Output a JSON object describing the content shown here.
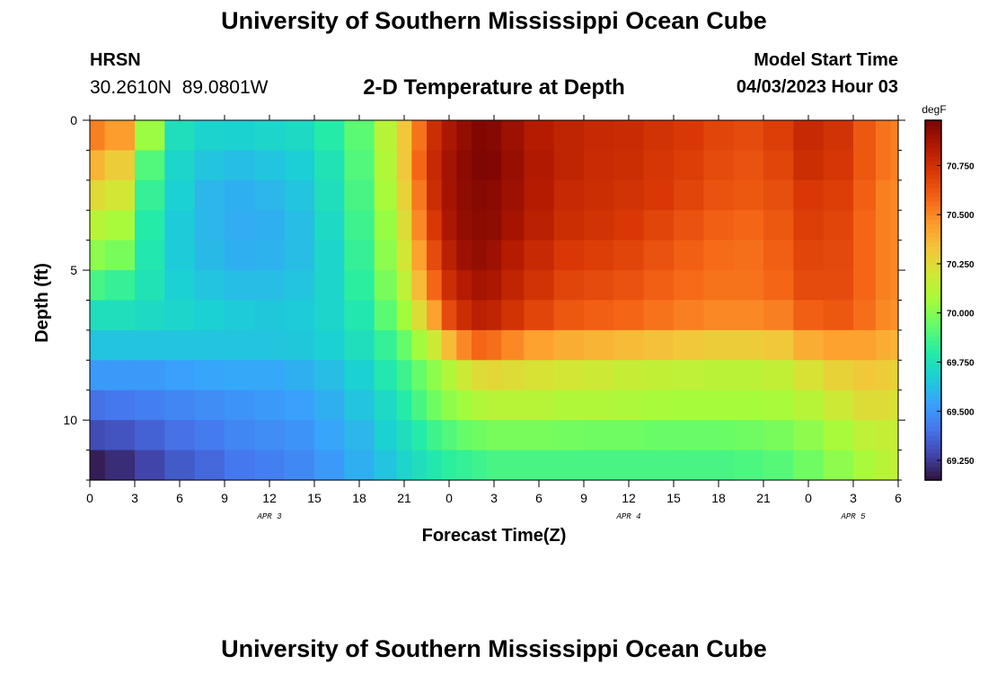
{
  "header": {
    "title": "University of Southern Mississippi Ocean Cube",
    "station": "HRSN",
    "coords": "30.2610N  89.0801W",
    "subtitle": "2-D Temperature at Depth",
    "model_start_label": "Model Start Time",
    "model_start_value": "04/03/2023 Hour 03"
  },
  "footer": {
    "title": "University of Southern Mississippi Ocean Cube"
  },
  "chart_data": {
    "type": "heatmap",
    "title": "2-D Temperature at Depth",
    "xlabel": "Forecast Time(Z)",
    "ylabel": "Depth (ft)",
    "x_ticks": [
      "0",
      "3",
      "6",
      "9",
      "12",
      "15",
      "18",
      "21",
      "0",
      "3",
      "6",
      "9",
      "12",
      "15",
      "18",
      "21",
      "0",
      "3",
      "6"
    ],
    "day_labels": [
      {
        "label": "APR 3",
        "at_hour": 12
      },
      {
        "label": "APR 4",
        "at_hour": 36
      },
      {
        "label": "APR 5",
        "at_hour": 51
      }
    ],
    "y_ticks": [
      "0",
      "5",
      "10"
    ],
    "xlim_hours": [
      0,
      54
    ],
    "ylim_ft": [
      0,
      12
    ],
    "colorbar": {
      "unit": "degF",
      "range": [
        69.15,
        70.98
      ],
      "tick_values": [
        69.25,
        69.5,
        69.75,
        70.0,
        70.25,
        70.5,
        70.75
      ],
      "tick_labels": [
        "69.250",
        "69.500",
        "69.750",
        "70.000",
        "70.250",
        "70.500",
        "70.750"
      ],
      "colormap": [
        "#30123b",
        "#4145ab",
        "#4675ed",
        "#39a2fc",
        "#1bcfd4",
        "#24eca6",
        "#61fc6c",
        "#a4fc3b",
        "#d1e834",
        "#f3c63a",
        "#fe9b2d",
        "#f36315",
        "#d93806",
        "#b11901",
        "#7a0403"
      ]
    },
    "depth_levels_ft": [
      0.5,
      1.5,
      2.5,
      3.5,
      4.5,
      5.5,
      6.5,
      7.5,
      8.5,
      9.5,
      10.5,
      11.5
    ],
    "time_hours": [
      0,
      2,
      4,
      6,
      8,
      10,
      12,
      14,
      16,
      18,
      20,
      21,
      22,
      23,
      24,
      25,
      26,
      27,
      28,
      30,
      32,
      34,
      36,
      38,
      40,
      42,
      44,
      46,
      48,
      50,
      52,
      53,
      54
    ],
    "values_degF": [
      [
        70.52,
        70.45,
        70.05,
        69.74,
        69.69,
        69.68,
        69.7,
        69.72,
        69.8,
        69.92,
        70.12,
        70.32,
        70.55,
        70.76,
        70.86,
        70.92,
        70.96,
        70.95,
        70.9,
        70.84,
        70.8,
        70.78,
        70.77,
        70.74,
        70.72,
        70.68,
        70.66,
        70.7,
        70.78,
        70.74,
        70.62,
        70.55,
        70.52
      ],
      [
        70.38,
        70.3,
        69.9,
        69.7,
        69.64,
        69.62,
        69.64,
        69.67,
        69.76,
        69.9,
        70.1,
        70.32,
        70.58,
        70.78,
        70.88,
        70.94,
        70.97,
        70.96,
        70.91,
        70.85,
        70.8,
        70.77,
        70.76,
        70.73,
        70.7,
        70.66,
        70.64,
        70.68,
        70.76,
        70.73,
        70.62,
        70.55,
        70.52
      ],
      [
        70.25,
        70.2,
        69.84,
        69.68,
        69.6,
        69.58,
        69.6,
        69.64,
        69.74,
        69.88,
        70.08,
        70.28,
        70.54,
        70.76,
        70.88,
        70.93,
        70.95,
        70.94,
        70.9,
        70.84,
        70.78,
        70.76,
        70.74,
        70.72,
        70.68,
        70.64,
        70.62,
        70.65,
        70.72,
        70.7,
        70.6,
        70.52,
        70.5
      ],
      [
        70.12,
        70.08,
        69.8,
        69.66,
        69.6,
        69.57,
        69.58,
        69.62,
        69.72,
        69.86,
        70.04,
        70.24,
        70.5,
        70.72,
        70.86,
        70.92,
        70.94,
        70.93,
        70.88,
        70.82,
        70.76,
        70.74,
        70.72,
        70.68,
        70.64,
        70.6,
        70.58,
        70.62,
        70.7,
        70.68,
        70.58,
        70.52,
        70.5
      ],
      [
        70.02,
        69.98,
        69.78,
        69.66,
        69.61,
        69.58,
        69.59,
        69.62,
        69.7,
        69.84,
        70.02,
        70.2,
        70.44,
        70.66,
        70.82,
        70.9,
        70.92,
        70.9,
        70.84,
        70.78,
        70.72,
        70.7,
        70.68,
        70.64,
        70.6,
        70.57,
        70.56,
        70.6,
        70.68,
        70.67,
        70.58,
        70.52,
        70.5
      ],
      [
        69.88,
        69.84,
        69.76,
        69.68,
        69.64,
        69.62,
        69.62,
        69.64,
        69.7,
        69.82,
        69.98,
        70.14,
        70.36,
        70.58,
        70.76,
        70.84,
        70.88,
        70.86,
        70.8,
        70.74,
        70.68,
        70.66,
        70.64,
        70.6,
        70.57,
        70.55,
        70.55,
        70.58,
        70.66,
        70.66,
        70.58,
        70.52,
        70.5
      ],
      [
        69.74,
        69.74,
        69.72,
        69.7,
        69.68,
        69.66,
        69.65,
        69.66,
        69.7,
        69.78,
        69.92,
        70.06,
        70.24,
        70.44,
        70.66,
        70.76,
        70.82,
        70.8,
        70.74,
        70.68,
        70.62,
        70.6,
        70.58,
        70.55,
        70.52,
        70.5,
        70.5,
        70.52,
        70.6,
        70.62,
        70.56,
        70.5,
        70.48
      ],
      [
        69.64,
        69.64,
        69.64,
        69.64,
        69.64,
        69.64,
        69.64,
        69.65,
        69.68,
        69.74,
        69.84,
        69.94,
        70.06,
        70.18,
        70.36,
        70.5,
        70.58,
        70.56,
        70.5,
        70.44,
        70.4,
        70.38,
        70.36,
        70.34,
        70.32,
        70.3,
        70.3,
        70.32,
        70.4,
        70.44,
        70.44,
        70.4,
        70.38
      ],
      [
        69.52,
        69.52,
        69.52,
        69.54,
        69.55,
        69.56,
        69.56,
        69.58,
        69.62,
        69.68,
        69.78,
        69.86,
        69.94,
        70.02,
        70.1,
        70.18,
        70.24,
        70.26,
        70.24,
        70.22,
        70.2,
        70.18,
        70.16,
        70.15,
        70.14,
        70.13,
        70.13,
        70.15,
        70.22,
        70.28,
        70.32,
        70.3,
        70.28
      ],
      [
        69.4,
        69.42,
        69.44,
        69.46,
        69.48,
        69.5,
        69.52,
        69.54,
        69.58,
        69.64,
        69.72,
        69.8,
        69.88,
        69.96,
        70.02,
        70.06,
        70.1,
        70.12,
        70.12,
        70.12,
        70.1,
        70.1,
        70.09,
        70.08,
        70.07,
        70.07,
        70.07,
        70.08,
        70.12,
        70.18,
        70.24,
        70.24,
        70.22
      ],
      [
        69.3,
        69.32,
        69.36,
        69.4,
        69.43,
        69.46,
        69.48,
        69.5,
        69.55,
        69.6,
        69.68,
        69.74,
        69.8,
        69.86,
        69.9,
        69.94,
        69.96,
        69.98,
        69.98,
        69.98,
        69.97,
        69.96,
        69.96,
        69.95,
        69.95,
        69.95,
        69.96,
        69.98,
        70.02,
        70.08,
        70.14,
        70.16,
        70.16
      ],
      [
        69.18,
        69.22,
        69.28,
        69.34,
        69.38,
        69.42,
        69.44,
        69.47,
        69.52,
        69.58,
        69.64,
        69.7,
        69.74,
        69.78,
        69.82,
        69.84,
        69.86,
        69.88,
        69.88,
        69.88,
        69.88,
        69.88,
        69.88,
        69.88,
        69.88,
        69.88,
        69.89,
        69.91,
        69.96,
        70.02,
        70.08,
        70.12,
        70.14
      ]
    ]
  }
}
